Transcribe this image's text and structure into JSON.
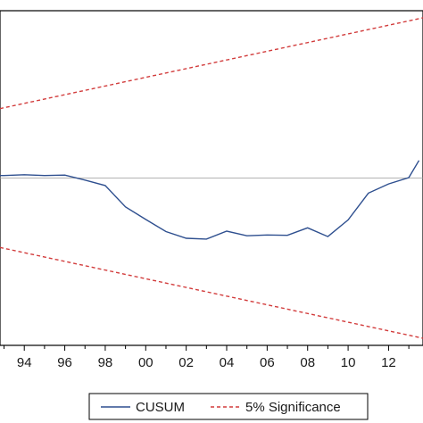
{
  "chart_data": {
    "type": "line",
    "title": "",
    "xlabel": "",
    "ylabel": "",
    "xlim": [
      1992.8,
      2013.7
    ],
    "ylim": [
      -40,
      40
    ],
    "x_tick_labels": [
      {
        "x": 1994,
        "label": "94"
      },
      {
        "x": 1996,
        "label": "96"
      },
      {
        "x": 1998,
        "label": "98"
      },
      {
        "x": 2000,
        "label": "00"
      },
      {
        "x": 2002,
        "label": "02"
      },
      {
        "x": 2004,
        "label": "04"
      },
      {
        "x": 2006,
        "label": "06"
      },
      {
        "x": 2008,
        "label": "08"
      },
      {
        "x": 2010,
        "label": "10"
      },
      {
        "x": 2012,
        "label": "12"
      }
    ],
    "zero_line": 0,
    "grid": false,
    "legend_position": "bottom",
    "series": [
      {
        "name": "CUSUM",
        "color": "#2e4f8f",
        "style": "solid",
        "x": [
          1992.8,
          1993,
          1994,
          1995,
          1996,
          1997,
          1998,
          1999,
          2000,
          2001,
          2002,
          2003,
          2004,
          2005,
          2006,
          2007,
          2008,
          2009,
          2010,
          2011,
          2012,
          2013,
          2013.5
        ],
        "y": [
          0.6,
          0.6,
          0.8,
          0.6,
          0.7,
          -0.5,
          -1.8,
          -6.9,
          -9.9,
          -12.8,
          -14.4,
          -14.6,
          -12.7,
          -13.8,
          -13.6,
          -13.7,
          -11.9,
          -14.0,
          -10.0,
          -3.6,
          -1.4,
          0.1,
          4.2
        ]
      },
      {
        "name": "5% Significance",
        "color": "#d23c3c",
        "style": "dashed",
        "lines": [
          {
            "x": [
              1992.8,
              2013.7
            ],
            "y": [
              16.6,
              38.3
            ]
          },
          {
            "x": [
              1992.8,
              2013.7
            ],
            "y": [
              -16.6,
              -38.3
            ]
          }
        ]
      }
    ]
  }
}
